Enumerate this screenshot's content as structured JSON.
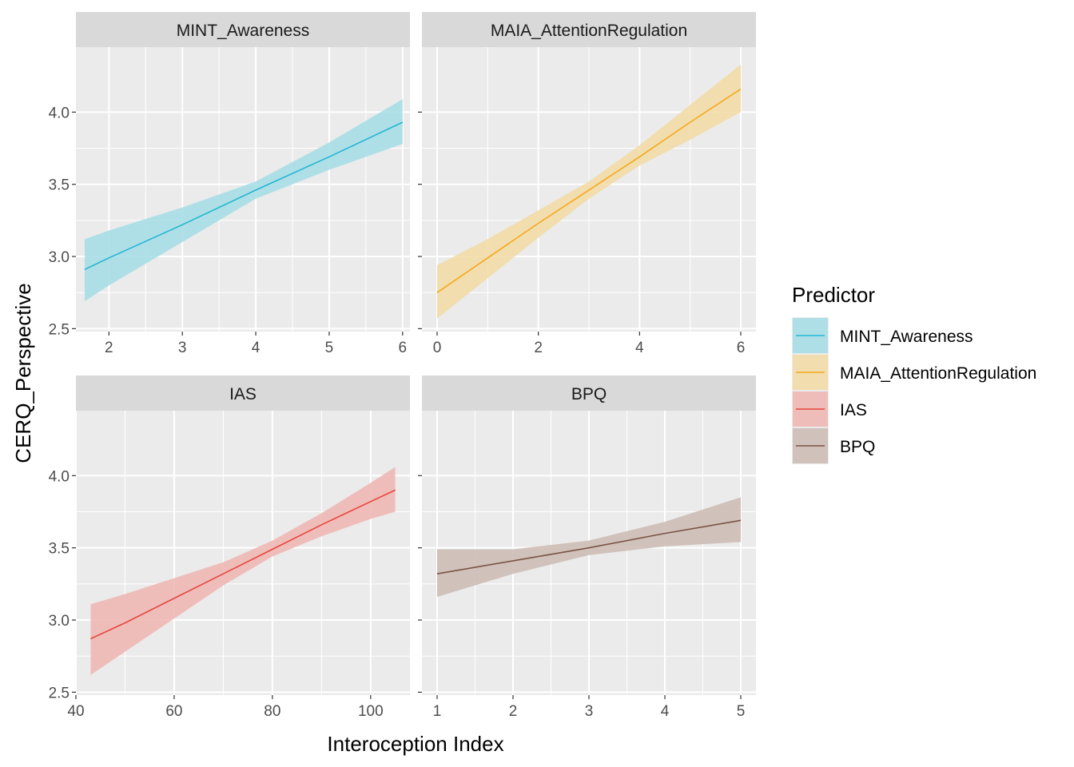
{
  "chart_data": {
    "type": "line",
    "ylabel": "CERQ_Perspective",
    "xlabel": "Interoception Index",
    "ylim": [
      2.48,
      4.45
    ],
    "yticks": [
      "2.5",
      "3.0",
      "3.5",
      "4.0"
    ],
    "ytick_values": [
      2.5,
      3.0,
      3.5,
      4.0
    ],
    "grid": true,
    "legend": {
      "title": "Predictor",
      "position": "right",
      "entries": [
        "MINT_Awareness",
        "MAIA_AttentionRegulation",
        "IAS",
        "BPQ"
      ]
    },
    "panels": [
      {
        "strip": "MINT_Awareness",
        "color": "#22B5D3",
        "fill": "#A8DEE6",
        "xlim": [
          1.55,
          6.1
        ],
        "xticks": [
          "2",
          "3",
          "4",
          "5",
          "6"
        ],
        "xtick_values": [
          2,
          3,
          4,
          5,
          6
        ],
        "series": {
          "name": "MINT_Awareness",
          "x": [
            1.67,
            2,
            3,
            4,
            5,
            6
          ],
          "y": [
            2.91,
            2.99,
            3.22,
            3.46,
            3.69,
            3.93
          ],
          "lower": [
            2.69,
            2.8,
            3.1,
            3.4,
            3.6,
            3.78
          ],
          "upper": [
            3.12,
            3.18,
            3.34,
            3.52,
            3.79,
            4.09
          ]
        }
      },
      {
        "strip": "MAIA_AttentionRegulation",
        "color": "#F5A91E",
        "fill": "#F2DCA6",
        "xlim": [
          -0.3,
          6.3
        ],
        "xticks": [
          "0",
          "2",
          "4",
          "6"
        ],
        "xtick_values": [
          0,
          2,
          4,
          6
        ],
        "series": {
          "name": "MAIA_AttentionRegulation",
          "x": [
            0,
            1,
            2,
            3,
            4,
            5,
            6
          ],
          "y": [
            2.75,
            2.99,
            3.23,
            3.46,
            3.69,
            3.93,
            4.16
          ],
          "lower": [
            2.57,
            2.85,
            3.13,
            3.4,
            3.63,
            3.81,
            4.0
          ],
          "upper": [
            2.94,
            3.12,
            3.32,
            3.52,
            3.77,
            4.05,
            4.33
          ]
        }
      },
      {
        "strip": "IAS",
        "color": "#E8453C",
        "fill": "#EFB8B4",
        "xlim": [
          40,
          108
        ],
        "xticks": [
          "40",
          "60",
          "80",
          "100"
        ],
        "xtick_values": [
          40,
          60,
          80,
          100
        ],
        "series": {
          "name": "IAS",
          "x": [
            43,
            50,
            60,
            70,
            80,
            90,
            100,
            105
          ],
          "y": [
            2.87,
            2.98,
            3.15,
            3.32,
            3.49,
            3.66,
            3.82,
            3.9
          ],
          "lower": [
            2.62,
            2.78,
            3.01,
            3.24,
            3.44,
            3.58,
            3.7,
            3.75
          ],
          "upper": [
            3.11,
            3.18,
            3.29,
            3.4,
            3.55,
            3.74,
            3.95,
            4.06
          ]
        }
      },
      {
        "strip": "BPQ",
        "color": "#7A5446",
        "fill": "#CDBCB5",
        "xlim": [
          0.8,
          5.2
        ],
        "xticks": [
          "1",
          "2",
          "3",
          "4",
          "5"
        ],
        "xtick_values": [
          1,
          2,
          3,
          4,
          5
        ],
        "series": {
          "name": "BPQ",
          "x": [
            1,
            2,
            3,
            4,
            5
          ],
          "y": [
            3.32,
            3.41,
            3.5,
            3.6,
            3.69
          ],
          "lower": [
            3.16,
            3.32,
            3.45,
            3.51,
            3.54
          ],
          "upper": [
            3.49,
            3.49,
            3.55,
            3.68,
            3.85
          ]
        }
      }
    ]
  }
}
